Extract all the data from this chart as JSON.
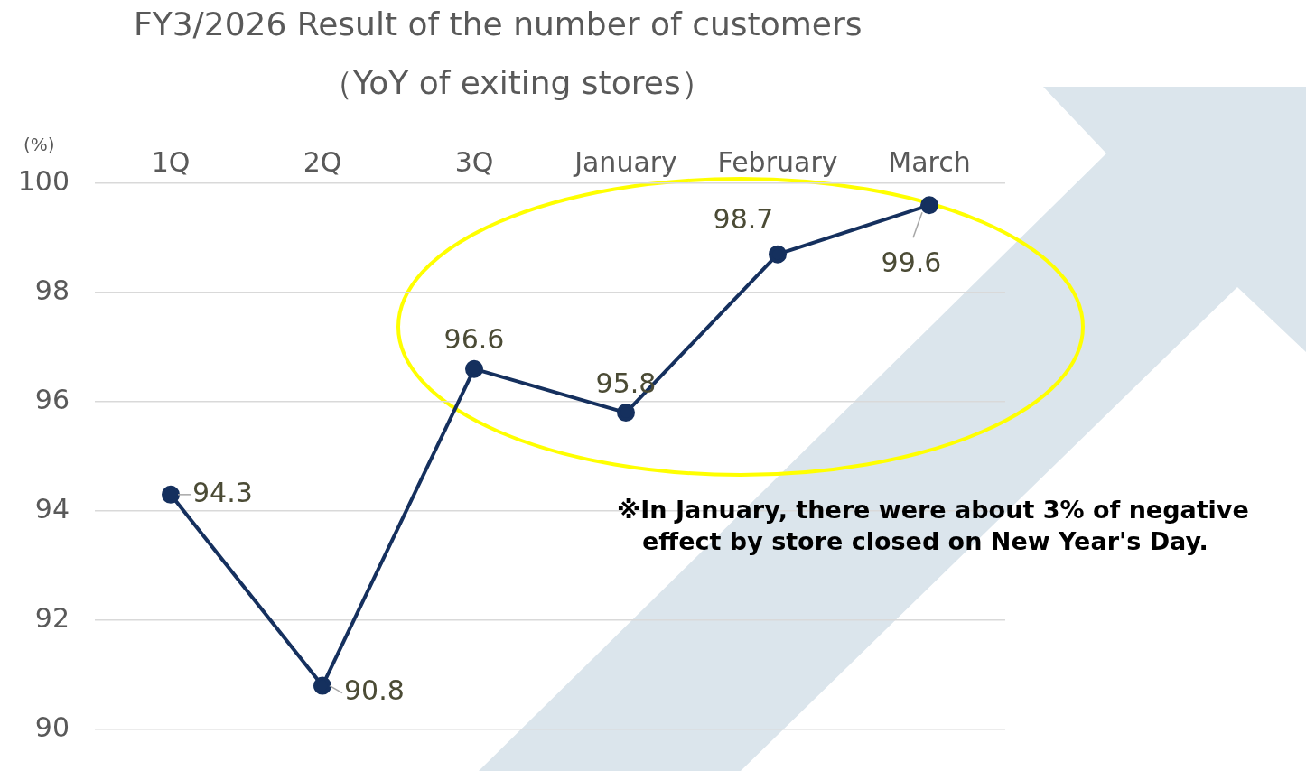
{
  "chart_data": {
    "type": "line",
    "title": "FY3/2026 Result of the number of customers",
    "subtitle": "（YoY of exiting stores）",
    "ylabel": "(%)",
    "categories": [
      "1Q",
      "2Q",
      "3Q",
      "January",
      "February",
      "March"
    ],
    "series": [
      {
        "color": "#15305e",
        "values": [
          94.3,
          90.8,
          96.6,
          95.8,
          98.7,
          99.6
        ]
      }
    ],
    "ylim": [
      90,
      100
    ],
    "yticks": [
      90,
      92,
      94,
      96,
      98,
      100
    ],
    "grid": "y",
    "legend": false,
    "marker": "circle",
    "line_style": "solid",
    "data_labels": true,
    "annotations": [
      "※In January, there were about 3% of negative effect by store closed on New Year's Day."
    ]
  }
}
